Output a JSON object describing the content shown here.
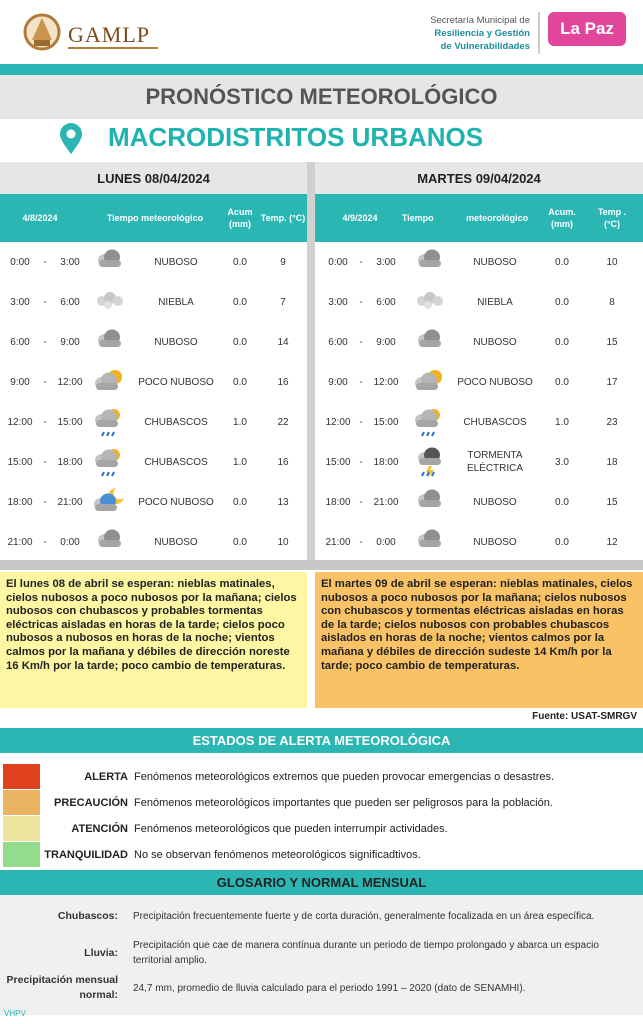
{
  "header": {
    "logo": "GAMLP",
    "secretaria": [
      "Secretaría Municipal de",
      "Resiliencia y Gestión",
      "de Vulnerabilidades"
    ],
    "brand": "La Paz"
  },
  "title": "PRONÓSTICO METEOROLÓGICO",
  "subtitle": "MACRODISTRITOS URBANOS",
  "separator": "-",
  "days": [
    {
      "heading": "LUNES 08/04/2024",
      "columns": {
        "date": "4/8/2024",
        "weather": "Tiempo meteorológico",
        "acum": "Acum (mm)",
        "temp": "Temp. (°C)"
      },
      "rows": [
        {
          "start": "0:00",
          "end": "3:00",
          "condition": "NUBOSO",
          "acum": "0.0",
          "temp": 9
        },
        {
          "start": "3:00",
          "end": "6:00",
          "condition": "NIEBLA",
          "acum": "0.0",
          "temp": 7
        },
        {
          "start": "6:00",
          "end": "9:00",
          "condition": "NUBOSO",
          "acum": "0.0",
          "temp": 14
        },
        {
          "start": "9:00",
          "end": "12:00",
          "condition": "POCO NUBOSO",
          "acum": "0.0",
          "temp": 16
        },
        {
          "start": "12:00",
          "end": "15:00",
          "condition": "CHUBASCOS",
          "acum": "1.0",
          "temp": 22
        },
        {
          "start": "15:00",
          "end": "18:00",
          "condition": "CHUBASCOS",
          "acum": "1.0",
          "temp": 16
        },
        {
          "start": "18:00",
          "end": "21:00",
          "condition": "POCO NUBOSO",
          "acum": "0.0",
          "temp": 13
        },
        {
          "start": "21:00",
          "end": "0:00",
          "condition": "NUBOSO",
          "acum": "0.0",
          "temp": 10
        }
      ],
      "summary": "El lunes 08 de abril se esperan: nieblas matinales, cielos nubosos a poco nubosos por la mañana; cielos nubosos con chubascos y probables tormentas eléctricas aisladas en horas de la tarde; cielos poco nubosos a nubosos en horas de la noche; vientos calmos por la mañana y débiles de dirección noreste 16 Km/h por la tarde; poco cambio de temperaturas."
    },
    {
      "heading": "MARTES 09/04/2024",
      "columns": {
        "date": "4/9/2024",
        "weather": "Tiempo meteorológico",
        "acum": "Acum. (mm)",
        "temp": "Temp . (°C)"
      },
      "rows": [
        {
          "start": "0:00",
          "end": "3:00",
          "condition": "NUBOSO",
          "acum": "0.0",
          "temp": 10
        },
        {
          "start": "3:00",
          "end": "6:00",
          "condition": "NIEBLA",
          "acum": "0.0",
          "temp": 8
        },
        {
          "start": "6:00",
          "end": "9:00",
          "condition": "NUBOSO",
          "acum": "0.0",
          "temp": 15
        },
        {
          "start": "9:00",
          "end": "12:00",
          "condition": "POCO NUBOSO",
          "acum": "0.0",
          "temp": 17
        },
        {
          "start": "12:00",
          "end": "15:00",
          "condition": "CHUBASCOS",
          "acum": "1.0",
          "temp": 23
        },
        {
          "start": "15:00",
          "end": "18:00",
          "condition": "TORMENTA ELÉCTRICA",
          "acum": "3.0",
          "temp": 18
        },
        {
          "start": "18:00",
          "end": "21:00",
          "condition": "NUBOSO",
          "acum": "0.0",
          "temp": 15
        },
        {
          "start": "21:00",
          "end": "0:00",
          "condition": "NUBOSO",
          "acum": "0.0",
          "temp": 12
        }
      ],
      "summary": "El martes 09 de abril se esperan: nieblas matinales, cielos nubosos a poco nubosos por la mañana; cielos nubosos con chubascos y tormentas eléctricas aisladas en horas de la tarde; cielos nubosos con probables chubascos aislados en horas de la noche; vientos calmos por la mañana y débiles de dirección sudeste 14 Km/h por la tarde; poco cambio de temperaturas."
    }
  ],
  "source": "Fuente: USAT-SMRGV",
  "alerts": {
    "title": "ESTADOS DE ALERTA METEOROLÓGICA",
    "levels": [
      {
        "label": "ALERTA",
        "description": "Fenómenos meteorológicos extremos que pueden provocar emergencias o desastres."
      },
      {
        "label": "PRECAUCIÓN",
        "description": "Fenómenos meteorológicos importantes que pueden ser peligrosos para la población."
      },
      {
        "label": "ATENCIÓN",
        "description": "Fenómenos meteorológicos que pueden interrumpir actividades."
      },
      {
        "label": "TRANQUILIDAD",
        "description": "No se observan fenómenos meteorológicos significadtivos."
      }
    ]
  },
  "glossary": {
    "title": "GLOSARIO Y NORMAL MENSUAL",
    "entries": [
      {
        "term": "Chubascos:",
        "definition": "Precipitación frecuentemente fuerte y de corta duración, generalmente focalizada en un área específica."
      },
      {
        "term": "Lluvia:",
        "definition": "Precipitación que cae de manera contínua durante un periodo de tiempo prolongado y abarca un espacio territorial amplio."
      },
      {
        "term": "Precipitación mensual normal:",
        "definition": "24,7 mm, promedio de lluvia calculado para el periodo 1991 – 2020 (dato de SENAMHI)."
      }
    ]
  },
  "footer": "VHPV"
}
